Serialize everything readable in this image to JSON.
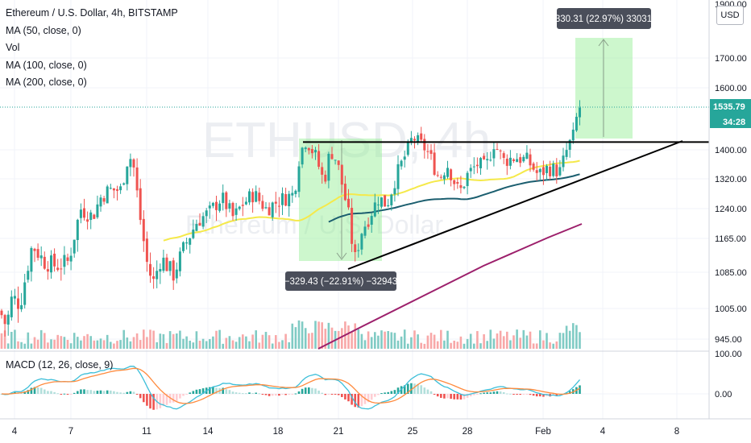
{
  "header": {
    "title": "Ethereum / U.S. Dollar, 4h, BITSTAMP",
    "indicators": [
      "MA (50, close, 0)",
      "Vol",
      "MA (100, close, 0)",
      "MA (200, close, 0)"
    ],
    "watermark_symbol": "ETHUSD, 4h",
    "watermark_name": "Ethereum / U.S. Dollar",
    "currency_button": "USD"
  },
  "price_axis": {
    "ticks": [
      "1900.00",
      "1700.00",
      "1600.00",
      "1400.00",
      "1320.00",
      "1240.00",
      "1165.00",
      "1085.00",
      "1005.00",
      "945.00"
    ],
    "last_price": "1535.79",
    "countdown": "34:28"
  },
  "macd": {
    "label": "MACD (12, 26, close, 9)",
    "ticks": [
      "100.00",
      "0.00"
    ]
  },
  "time_axis": {
    "ticks": [
      "4",
      "7",
      "11",
      "14",
      "18",
      "21",
      "25",
      "28",
      "Feb",
      "4",
      "8"
    ]
  },
  "annotations": {
    "short_range_label": "−329.43 (−22.91%) −32943",
    "long_range_label": "330.31 (22.97%) 33031"
  },
  "colors": {
    "up": "#26a69a",
    "down": "#ef5350",
    "ma50": "#f5e94a",
    "ma100": "#1b5e6f",
    "ma200": "#9c1f6b",
    "trendline": "#000000",
    "range_box": "#90ee90",
    "macd_line": "#3dbfd9",
    "signal_line": "#ff8a3d"
  },
  "chart_data": {
    "type": "candlestick",
    "x_start_label": "4",
    "x_end_label": "8",
    "resistance_level": 1425,
    "last_close": 1535.79,
    "measure_down": {
      "change": -329.43,
      "percent": -22.91
    },
    "measure_up": {
      "change": 330.31,
      "percent": 22.97
    },
    "ma_periods": [
      50,
      100,
      200
    ]
  }
}
